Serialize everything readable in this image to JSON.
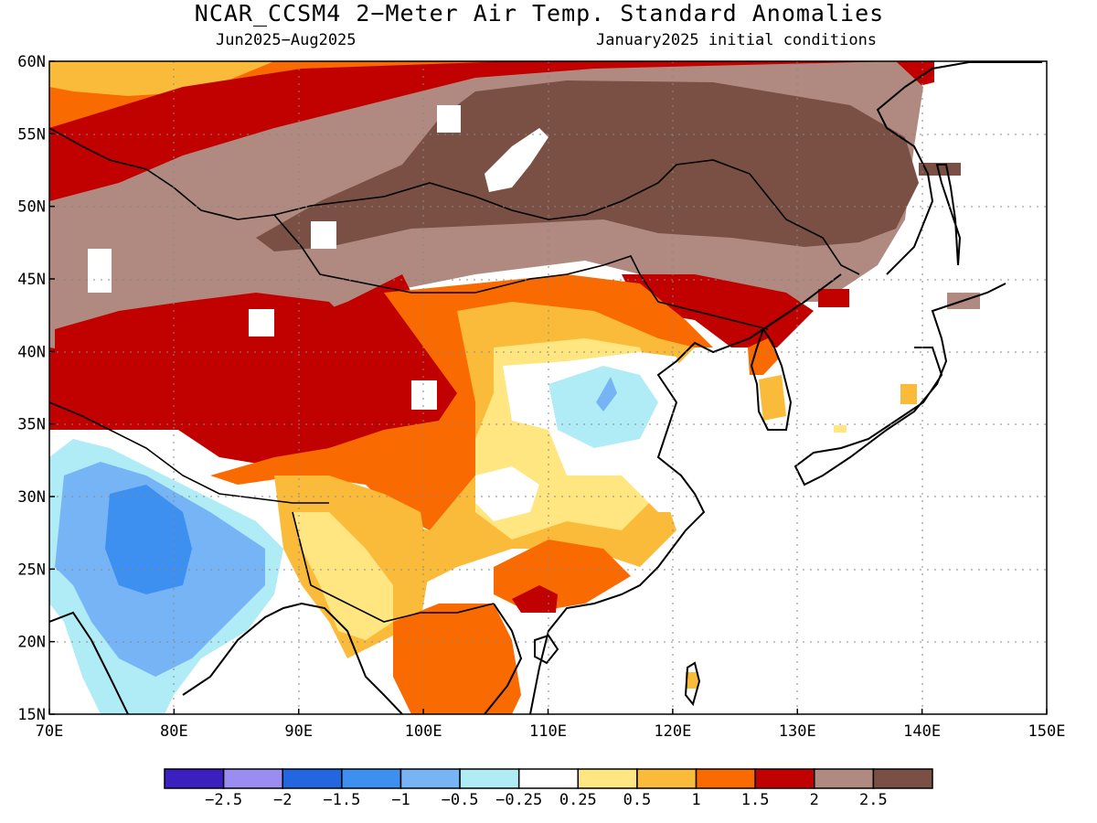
{
  "title": "NCAR_CCSM4 2−Meter Air Temp. Standard Anomalies",
  "subtitle_left": "Jun2025−Aug2025",
  "subtitle_right": "January2025 initial conditions",
  "map": {
    "lon_range": [
      70,
      150
    ],
    "lat_range": [
      15,
      60
    ],
    "lat_ticks": [
      {
        "value": 60,
        "label": "60N"
      },
      {
        "value": 55,
        "label": "55N"
      },
      {
        "value": 50,
        "label": "50N"
      },
      {
        "value": 45,
        "label": "45N"
      },
      {
        "value": 40,
        "label": "40N"
      },
      {
        "value": 35,
        "label": "35N"
      },
      {
        "value": 30,
        "label": "30N"
      },
      {
        "value": 25,
        "label": "25N"
      },
      {
        "value": 20,
        "label": "20N"
      },
      {
        "value": 15,
        "label": "15N"
      }
    ],
    "lon_ticks": [
      {
        "value": 70,
        "label": "70E"
      },
      {
        "value": 80,
        "label": "80E"
      },
      {
        "value": 90,
        "label": "90E"
      },
      {
        "value": 100,
        "label": "100E"
      },
      {
        "value": 110,
        "label": "110E"
      },
      {
        "value": 120,
        "label": "120E"
      },
      {
        "value": 130,
        "label": "130E"
      },
      {
        "value": 140,
        "label": "140E"
      },
      {
        "value": 150,
        "label": "150E"
      }
    ]
  },
  "colorbar": {
    "colors": [
      "#3b1fbf",
      "#9b8cf2",
      "#2266e0",
      "#3d8ff0",
      "#76b4f5",
      "#b0ecf5",
      "#ffffff",
      "#ffe680",
      "#fbbb3a",
      "#f96a00",
      "#c10000",
      "#b08a80",
      "#7a5045"
    ],
    "labels": [
      "−2.5",
      "−2",
      "−1.5",
      "−1",
      "−0.5",
      "−0.25",
      "0.25",
      "0.5",
      "1",
      "1.5",
      "2",
      "2.5"
    ]
  }
}
